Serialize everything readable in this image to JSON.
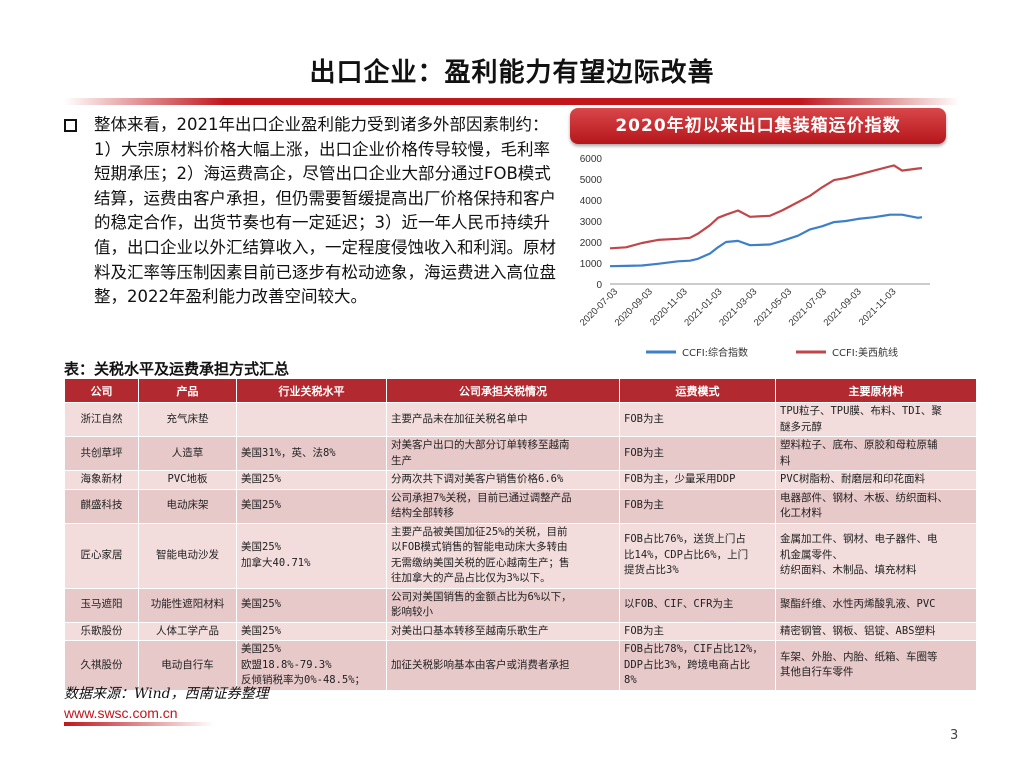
{
  "page": {
    "title": "出口企业：盈利能力有望边际改善",
    "bullet": "整体来看，2021年出口企业盈利能力受到诸多外部因素制约：1）大宗原材料价格大幅上涨，出口企业价格传导较慢，毛利率短期承压；2）海运费高企，尽管出口企业大部分通过FOB模式结算，运费由客户承担，但仍需要暂缓提高出厂价格保持和客户的稳定合作，出货节奏也有一定延迟；3）近一年人民币持续升值，出口企业以外汇结算收入，一定程度侵蚀收入和利润。原材料及汇率等压制因素目前已逐步有松动迹象，海运费进入高位盘整，2022年盈利能力改善空间较大。",
    "table_caption": "表：关税水平及运费承担方式汇总",
    "source": "数据来源：Wind，西南证券整理",
    "website": "www.swsc.com.cn",
    "page_number": "3"
  },
  "colors": {
    "accent": "#c0161c",
    "header": "#b22a30",
    "row_a": "#f2dcdc",
    "row_b": "#e8c9ca",
    "series1": "#3d7fc8",
    "series2": "#c0464a"
  },
  "chart_data": {
    "type": "line",
    "title": "2020年初以来出口集装箱运价指数",
    "x_ticks": [
      "2020-07-03",
      "2020-09-03",
      "2020-11-03",
      "2021-01-03",
      "2021-03-03",
      "2021-05-03",
      "2021-07-03",
      "2021-09-03",
      "2021-11-03"
    ],
    "y_ticks": [
      "0",
      "1000",
      "2000",
      "3000",
      "4000",
      "5000",
      "6000"
    ],
    "ylim": [
      0,
      6000
    ],
    "x_range_weeks": [
      0,
      80
    ],
    "series": [
      {
        "name": "CCFI:综合指数",
        "color": "#3d7fc8",
        "points": [
          [
            0,
            850
          ],
          [
            4,
            860
          ],
          [
            8,
            880
          ],
          [
            12,
            960
          ],
          [
            17,
            1080
          ],
          [
            20,
            1110
          ],
          [
            22,
            1200
          ],
          [
            25,
            1450
          ],
          [
            27,
            1750
          ],
          [
            29,
            2000
          ],
          [
            32,
            2050
          ],
          [
            35,
            1850
          ],
          [
            40,
            1880
          ],
          [
            43,
            2050
          ],
          [
            47,
            2300
          ],
          [
            50,
            2600
          ],
          [
            53,
            2750
          ],
          [
            56,
            2950
          ],
          [
            59,
            3000
          ],
          [
            62,
            3100
          ],
          [
            66,
            3180
          ],
          [
            70,
            3300
          ],
          [
            73,
            3300
          ],
          [
            77,
            3150
          ],
          [
            78,
            3180
          ]
        ]
      },
      {
        "name": "CCFI:美西航线",
        "color": "#c0464a",
        "points": [
          [
            0,
            1700
          ],
          [
            4,
            1750
          ],
          [
            8,
            1950
          ],
          [
            12,
            2100
          ],
          [
            17,
            2150
          ],
          [
            20,
            2200
          ],
          [
            22,
            2400
          ],
          [
            25,
            2800
          ],
          [
            27,
            3150
          ],
          [
            29,
            3300
          ],
          [
            32,
            3500
          ],
          [
            35,
            3200
          ],
          [
            40,
            3250
          ],
          [
            43,
            3500
          ],
          [
            47,
            3900
          ],
          [
            50,
            4200
          ],
          [
            53,
            4600
          ],
          [
            56,
            4950
          ],
          [
            59,
            5050
          ],
          [
            62,
            5200
          ],
          [
            66,
            5400
          ],
          [
            70,
            5600
          ],
          [
            71,
            5650
          ],
          [
            73,
            5400
          ],
          [
            77,
            5500
          ],
          [
            78,
            5520
          ]
        ]
      }
    ]
  },
  "table": {
    "headers": [
      "公司",
      "产品",
      "行业关税水平",
      "公司承担关税情况",
      "运费模式",
      "主要原材料"
    ],
    "rows": [
      {
        "company": "浙江自然",
        "product": "充气床垫",
        "tariff": [],
        "burden": [
          "主要产品未在加征关税名单中"
        ],
        "freight": [
          "FOB为主"
        ],
        "materials": [
          "TPU粒子、TPU膜、布料、TDI、聚",
          "醚多元醇"
        ]
      },
      {
        "company": "共创草坪",
        "product": "人造草",
        "tariff": [
          "美国31%，英、法8%"
        ],
        "burden": [
          "对美客户出口的大部分订单转移至越南",
          "生产"
        ],
        "freight": [
          "FOB为主"
        ],
        "materials": [
          "塑料粒子、底布、原胶和母粒原辅",
          "料"
        ]
      },
      {
        "company": "海象新材",
        "product": "PVC地板",
        "tariff": [
          "美国25%"
        ],
        "burden": [
          "分两次共下调对美客户销售价格6.6%"
        ],
        "freight": [
          "FOB为主，少量采用DDP"
        ],
        "materials": [
          "PVC树脂粉、耐磨层和印花面料"
        ]
      },
      {
        "company": "麒盛科技",
        "product": "电动床架",
        "tariff": [
          "美国25%"
        ],
        "burden": [
          "公司承担7%关税，目前已通过调整产品",
          "结构全部转移"
        ],
        "freight": [
          "FOB为主"
        ],
        "materials": [
          "电器部件、钢材、木板、纺织面料、",
          "化工材料"
        ]
      },
      {
        "company": "匠心家居",
        "product": "智能电动沙发",
        "tariff": [
          "美国25%",
          "加拿大40.71%"
        ],
        "burden": [
          "主要产品被美国加征25%的关税，目前",
          "以FOB模式销售的智能电动床大多转由",
          "无需缴纳美国关税的匠心越南生产；售",
          "往加拿大的产品占比仅为3%以下。"
        ],
        "freight": [
          "FOB占比76%，送货上门占",
          "比14%，CDP占比6%，上门",
          "提货占比3%"
        ],
        "materials": [
          "金属加工件、钢材、电子器件、电",
          "机金属零件、",
          "纺织面料、木制品、填充材料"
        ]
      },
      {
        "company": "玉马遮阳",
        "product": "功能性遮阳材料",
        "tariff": [
          "美国25%"
        ],
        "burden": [
          "公司对美国销售的金额占比为6%以下，",
          "影响较小"
        ],
        "freight": [
          "以FOB、CIF、CFR为主"
        ],
        "materials": [
          "聚酯纤维、水性丙烯酸乳液、PVC"
        ]
      },
      {
        "company": "乐歌股份",
        "product": "人体工学产品",
        "tariff": [
          "美国25%"
        ],
        "burden": [
          "对美出口基本转移至越南乐歌生产"
        ],
        "freight": [
          "FOB为主"
        ],
        "materials": [
          "精密钢管、钢板、铝锭、ABS塑料"
        ]
      },
      {
        "company": "久祺股份",
        "product": "电动自行车",
        "tariff": [
          "美国25%",
          "欧盟18.8%-79.3%",
          "反倾销税率为0%-48.5%；"
        ],
        "burden": [
          "加征关税影响基本由客户或消费者承担"
        ],
        "freight": [
          "FOB占比78%，CIF占比12%，",
          "DDP占比3%，跨境电商占比",
          "8%"
        ],
        "materials": [
          "车架、外胎、内胎、纸箱、车圈等",
          "其他自行车零件"
        ]
      }
    ]
  }
}
